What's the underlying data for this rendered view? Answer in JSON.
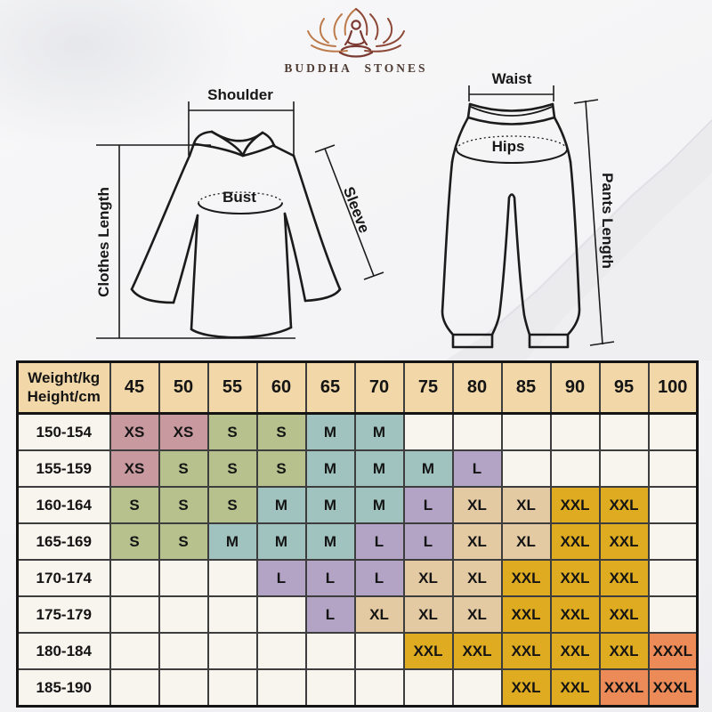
{
  "brand": {
    "name": "BUDDHA STONES"
  },
  "shirt": {
    "shoulder": "Shoulder",
    "bust": "Bust",
    "clothes_length": "Clothes Length",
    "sleeve": "Sleeve"
  },
  "pants": {
    "waist": "Waist",
    "hips": "Hips",
    "pants_length": "Pants Length"
  },
  "size_chart": {
    "header": {
      "corner": [
        "Weight/kg",
        "Height/cm"
      ],
      "weights": [
        "45",
        "50",
        "55",
        "60",
        "65",
        "70",
        "75",
        "80",
        "85",
        "90",
        "95",
        "100"
      ]
    },
    "rows": [
      {
        "height": "150-154",
        "sizes": [
          "XS",
          "XS",
          "S",
          "S",
          "M",
          "M",
          "",
          "",
          "",
          "",
          "",
          ""
        ]
      },
      {
        "height": "155-159",
        "sizes": [
          "XS",
          "S",
          "S",
          "S",
          "M",
          "M",
          "M",
          "L",
          "",
          "",
          "",
          ""
        ]
      },
      {
        "height": "160-164",
        "sizes": [
          "S",
          "S",
          "S",
          "M",
          "M",
          "M",
          "L",
          "XL",
          "XL",
          "XXL",
          "XXL",
          ""
        ]
      },
      {
        "height": "165-169",
        "sizes": [
          "S",
          "S",
          "M",
          "M",
          "M",
          "L",
          "L",
          "XL",
          "XL",
          "XXL",
          "XXL",
          ""
        ]
      },
      {
        "height": "170-174",
        "sizes": [
          "",
          "",
          "",
          "L",
          "L",
          "L",
          "XL",
          "XL",
          "XXL",
          "XXL",
          "XXL",
          ""
        ]
      },
      {
        "height": "175-179",
        "sizes": [
          "",
          "",
          "",
          "",
          "L",
          "XL",
          "XL",
          "XL",
          "XXL",
          "XXL",
          "XXL",
          ""
        ]
      },
      {
        "height": "180-184",
        "sizes": [
          "",
          "",
          "",
          "",
          "",
          "",
          "XXL",
          "XXL",
          "XXL",
          "XXL",
          "XXL",
          "XXXL"
        ]
      },
      {
        "height": "185-190",
        "sizes": [
          "",
          "",
          "",
          "",
          "",
          "",
          "",
          "",
          "XXL",
          "XXL",
          "XXXL",
          "XXXL"
        ]
      }
    ],
    "colors": {
      "header_bg": "#f2d8a8",
      "empty_bg": "#f8f4ee",
      "XS": "#c8999f",
      "S": "#b7c18e",
      "M": "#a0c3bf",
      "L": "#b3a4c5",
      "XL": "#e4caa2",
      "XXL": "#dfab20",
      "XXXL": "#ec8a58",
      "grid_line": "#3d3d3d",
      "outer_border": "#141414",
      "text": "#141414"
    }
  }
}
